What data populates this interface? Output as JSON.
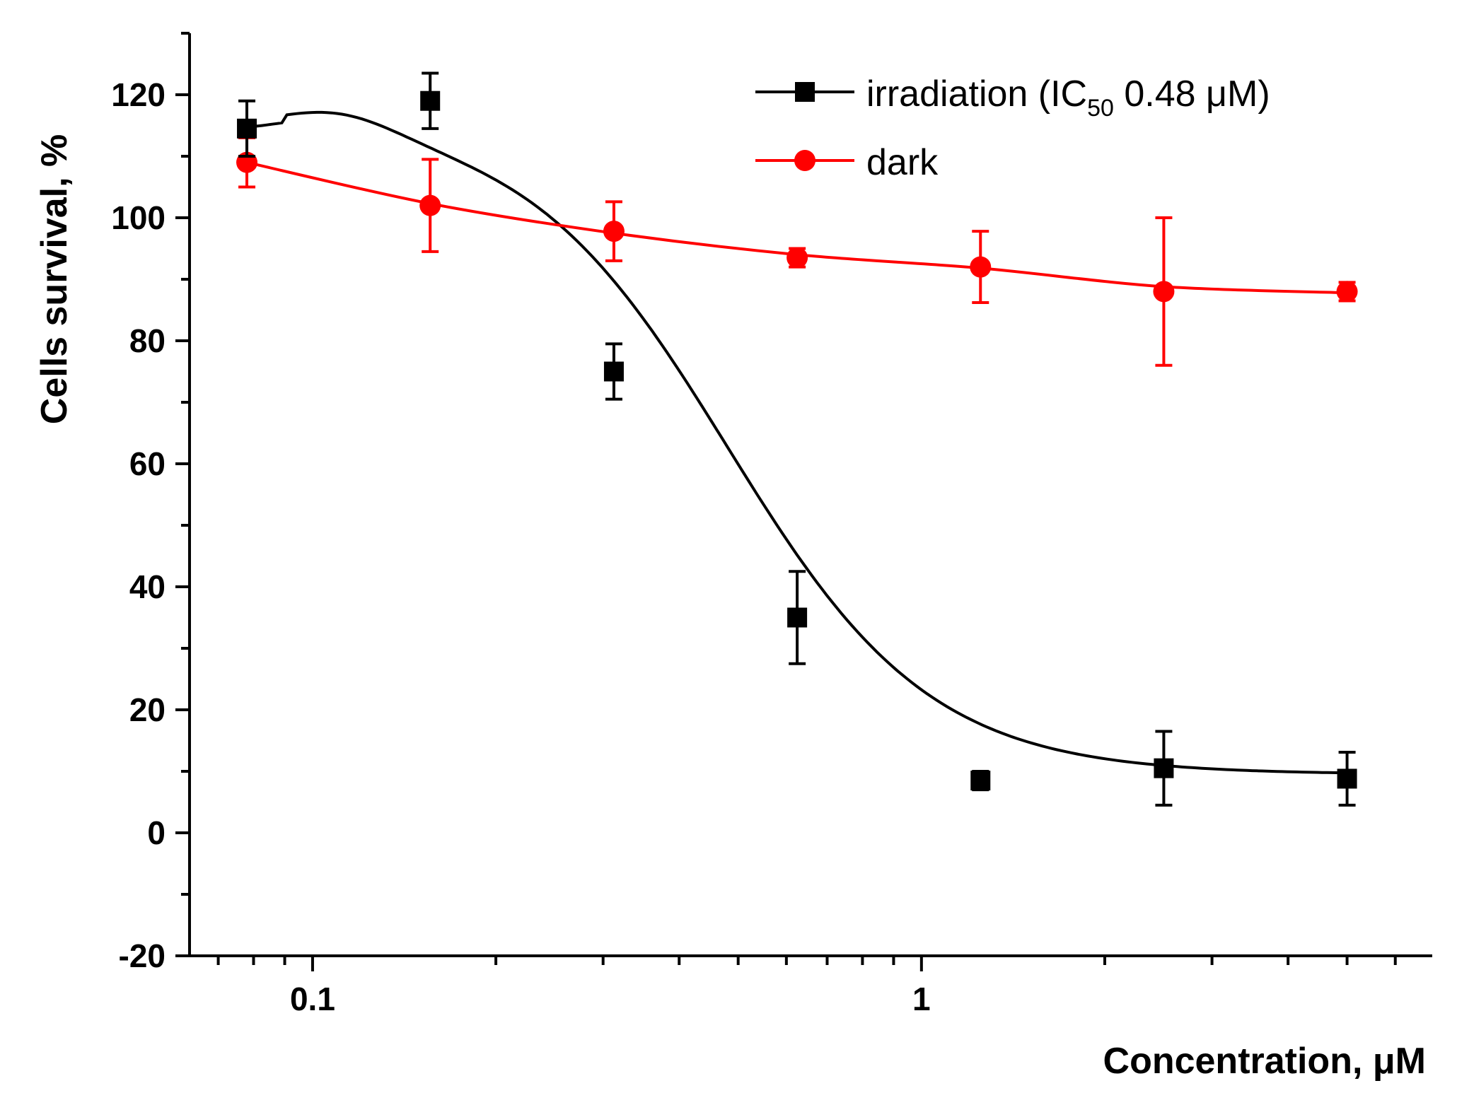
{
  "chart_data": {
    "type": "scatter",
    "xscale": "log",
    "xlabel": "Concentration, μM",
    "ylabel": "Cells survival, %",
    "xlim": [
      0.0628,
      6.9
    ],
    "ylim": [
      -20,
      130
    ],
    "x_major_ticks": [
      0.1,
      1
    ],
    "x_tick_labels": [
      "0.1",
      "1"
    ],
    "y_ticks": [
      -20,
      0,
      20,
      40,
      60,
      80,
      100,
      120
    ],
    "y_tick_labels": [
      "-20",
      "0",
      "20",
      "40",
      "60",
      "80",
      "100",
      "120"
    ],
    "legend_position": "top-right",
    "series": [
      {
        "name": "irradiation",
        "legend_label": {
          "prefix": "irradiation (IC",
          "sub": "50",
          "suffix": " 0.48 μM)"
        },
        "color": "#000000",
        "marker": "square",
        "x": [
          0.078,
          0.156,
          0.3125,
          0.625,
          1.25,
          2.5,
          5.0
        ],
        "y": [
          114.5,
          119,
          75,
          35,
          8.5,
          10.5,
          8.8
        ],
        "err": [
          4.5,
          4.5,
          4.5,
          7.5,
          1.5,
          6,
          4.3
        ],
        "fit": {
          "top": 116,
          "bottom": 9.5,
          "ic50": 0.48,
          "hill": 2.6
        }
      },
      {
        "name": "dark",
        "legend_label": {
          "prefix": "dark",
          "sub": "",
          "suffix": ""
        },
        "color": "#ff0000",
        "marker": "circle",
        "x": [
          0.078,
          0.156,
          0.3125,
          0.625,
          1.25,
          2.5,
          5.0
        ],
        "y": [
          109,
          102,
          97.8,
          93.5,
          92,
          88,
          88
        ],
        "err": [
          4,
          7.5,
          4.8,
          1.5,
          5.8,
          12,
          1.5
        ],
        "fit_points": [
          [
            0.078,
            109
          ],
          [
            0.156,
            102.3
          ],
          [
            0.3125,
            97.5
          ],
          [
            0.625,
            94
          ],
          [
            1.25,
            91.8
          ],
          [
            2.5,
            88.8
          ],
          [
            5.0,
            87.8
          ]
        ]
      }
    ]
  }
}
